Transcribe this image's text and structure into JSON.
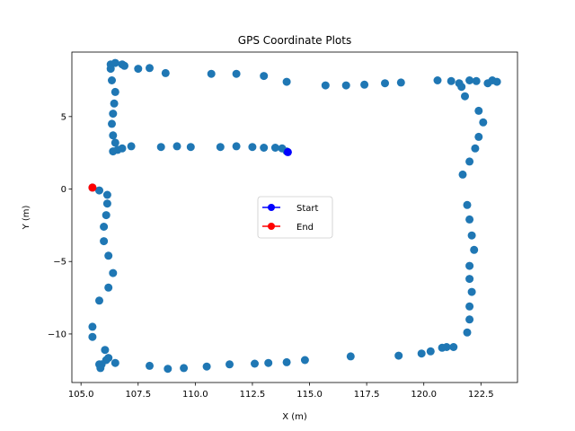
{
  "chart_data": {
    "type": "scatter",
    "title": "GPS Coordinate Plots",
    "xlabel": "X (m)",
    "ylabel": "Y (m)",
    "xlim": [
      104.6,
      124.1
    ],
    "ylim": [
      -13.35,
      9.45
    ],
    "xticks": [
      105.0,
      107.5,
      110.0,
      112.5,
      115.0,
      117.5,
      120.0,
      122.5
    ],
    "xtick_labels": [
      "105.0",
      "107.5",
      "110.0",
      "112.5",
      "115.0",
      "117.5",
      "120.0",
      "122.5"
    ],
    "yticks": [
      -10,
      -5,
      0,
      5
    ],
    "ytick_labels": [
      "−10",
      "−5",
      "0",
      "5"
    ],
    "grid": false,
    "legend_position": "center",
    "legend": [
      {
        "label": "Start",
        "color": "#0000ff"
      },
      {
        "label": "End",
        "color": "#ff0000"
      }
    ],
    "point_color": "#1f77b4",
    "points": [
      [
        114.0,
        2.6
      ],
      [
        113.8,
        2.8
      ],
      [
        113.5,
        2.85
      ],
      [
        113.0,
        2.85
      ],
      [
        112.5,
        2.9
      ],
      [
        111.8,
        2.95
      ],
      [
        111.1,
        2.9
      ],
      [
        109.8,
        2.9
      ],
      [
        109.2,
        2.95
      ],
      [
        108.5,
        2.9
      ],
      [
        107.2,
        2.95
      ],
      [
        106.8,
        2.8
      ],
      [
        106.6,
        2.7
      ],
      [
        106.4,
        2.6
      ],
      [
        106.5,
        3.2
      ],
      [
        106.4,
        3.7
      ],
      [
        106.35,
        4.5
      ],
      [
        106.4,
        5.2
      ],
      [
        106.45,
        5.9
      ],
      [
        106.5,
        6.7
      ],
      [
        106.35,
        7.5
      ],
      [
        106.3,
        8.3
      ],
      [
        106.3,
        8.6
      ],
      [
        106.5,
        8.7
      ],
      [
        106.8,
        8.6
      ],
      [
        106.9,
        8.5
      ],
      [
        107.5,
        8.3
      ],
      [
        108.0,
        8.35
      ],
      [
        108.7,
        8.0
      ],
      [
        110.7,
        7.95
      ],
      [
        111.8,
        7.95
      ],
      [
        113.0,
        7.8
      ],
      [
        114.0,
        7.4
      ],
      [
        115.7,
        7.15
      ],
      [
        116.6,
        7.15
      ],
      [
        117.4,
        7.2
      ],
      [
        118.3,
        7.3
      ],
      [
        119.0,
        7.35
      ],
      [
        120.6,
        7.5
      ],
      [
        121.2,
        7.45
      ],
      [
        121.55,
        7.3
      ],
      [
        121.65,
        7.05
      ],
      [
        122.0,
        7.5
      ],
      [
        122.3,
        7.45
      ],
      [
        122.8,
        7.3
      ],
      [
        123.0,
        7.5
      ],
      [
        123.2,
        7.4
      ],
      [
        121.8,
        6.4
      ],
      [
        122.4,
        5.4
      ],
      [
        122.6,
        4.6
      ],
      [
        122.4,
        3.6
      ],
      [
        122.25,
        2.8
      ],
      [
        122.0,
        1.9
      ],
      [
        121.7,
        1.0
      ],
      [
        121.9,
        -1.1
      ],
      [
        122.0,
        -2.1
      ],
      [
        122.1,
        -3.2
      ],
      [
        122.2,
        -4.2
      ],
      [
        122.0,
        -5.3
      ],
      [
        122.0,
        -6.2
      ],
      [
        122.1,
        -7.1
      ],
      [
        122.0,
        -8.1
      ],
      [
        122.0,
        -9.0
      ],
      [
        121.9,
        -9.9
      ],
      [
        121.3,
        -10.9
      ],
      [
        121.0,
        -10.9
      ],
      [
        120.8,
        -10.95
      ],
      [
        120.3,
        -11.2
      ],
      [
        119.9,
        -11.35
      ],
      [
        118.9,
        -11.5
      ],
      [
        116.8,
        -11.55
      ],
      [
        114.8,
        -11.8
      ],
      [
        114.0,
        -11.95
      ],
      [
        113.2,
        -12.0
      ],
      [
        112.6,
        -12.05
      ],
      [
        111.5,
        -12.1
      ],
      [
        110.5,
        -12.25
      ],
      [
        109.5,
        -12.35
      ],
      [
        108.8,
        -12.4
      ],
      [
        108.0,
        -12.2
      ],
      [
        106.5,
        -12.0
      ],
      [
        106.2,
        -11.65
      ],
      [
        106.1,
        -11.8
      ],
      [
        105.9,
        -12.1
      ],
      [
        105.8,
        -12.1
      ],
      [
        105.85,
        -12.35
      ],
      [
        106.05,
        -11.1
      ],
      [
        105.5,
        -10.2
      ],
      [
        105.5,
        -9.5
      ],
      [
        105.8,
        -7.7
      ],
      [
        106.2,
        -6.8
      ],
      [
        106.4,
        -5.8
      ],
      [
        106.2,
        -4.6
      ],
      [
        106.0,
        -3.6
      ],
      [
        106.0,
        -2.6
      ],
      [
        106.1,
        -1.8
      ],
      [
        106.15,
        -1.0
      ],
      [
        106.15,
        -0.4
      ],
      [
        105.8,
        -0.1
      ],
      [
        105.5,
        0.1
      ]
    ],
    "start": [
      114.05,
      2.55
    ],
    "end": [
      105.5,
      0.1
    ]
  }
}
